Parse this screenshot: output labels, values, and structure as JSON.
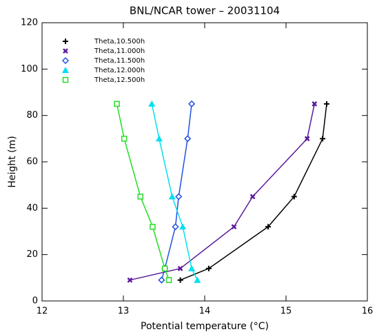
{
  "chart_data": {
    "type": "line",
    "title": "BNL/NCAR tower – 20031104",
    "x_label": "Potential temperature (°C)",
    "y_label": "Height (m)",
    "xlim": [
      12,
      16
    ],
    "xticks": [
      12,
      13,
      14,
      15,
      16
    ],
    "ylim": [
      0,
      120
    ],
    "yticks": [
      0,
      20,
      40,
      60,
      80,
      100,
      120
    ],
    "legend": "top-left",
    "series": [
      {
        "name": "Theta,10.500h",
        "color": "#000000",
        "marker": "plus",
        "x": [
          13.7,
          14.05,
          14.78,
          15.1,
          15.45,
          15.5
        ],
        "values": [
          9,
          14,
          32,
          45,
          70,
          85
        ]
      },
      {
        "name": "Theta,11.000h",
        "color": "#5b1a9e",
        "marker": "cross",
        "x": [
          13.08,
          13.7,
          14.36,
          14.59,
          15.26,
          15.35
        ],
        "values": [
          9,
          14,
          32,
          45,
          70,
          85
        ]
      },
      {
        "name": "Theta,11.500h",
        "color": "#1f4fe0",
        "marker": "diamond",
        "x": [
          13.47,
          13.51,
          13.64,
          13.68,
          13.79,
          13.84
        ],
        "values": [
          9,
          14,
          32,
          45,
          70,
          85
        ]
      },
      {
        "name": "Theta,12.000h",
        "color": "#00e0f0",
        "marker": "triangle",
        "x": [
          13.91,
          13.84,
          13.73,
          13.6,
          13.44,
          13.35
        ],
        "values": [
          9,
          14,
          32,
          45,
          70,
          85
        ]
      },
      {
        "name": "Theta,12.500h",
        "color": "#22dd22",
        "marker": "square",
        "x": [
          13.56,
          13.51,
          13.36,
          13.21,
          13.01,
          12.92
        ],
        "values": [
          9,
          14,
          32,
          45,
          70,
          85
        ]
      }
    ]
  }
}
